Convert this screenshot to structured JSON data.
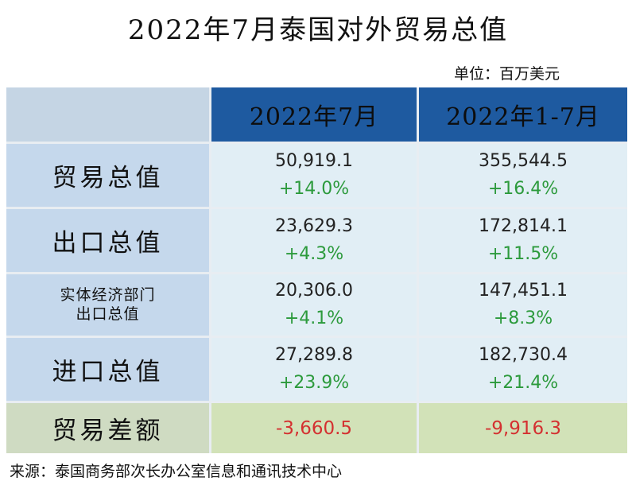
{
  "title": "2022年7月泰国对外贸易总值",
  "unit": "单位：百万美元",
  "columns": [
    "2022年7月",
    "2022年1-7月"
  ],
  "rows": [
    {
      "label": "贸易总值",
      "cells": [
        {
          "value": "50,919.1",
          "change": "+14.0%"
        },
        {
          "value": "355,544.5",
          "change": "+16.4%"
        }
      ]
    },
    {
      "label": "出口总值",
      "cells": [
        {
          "value": "23,629.3",
          "change": "+4.3%"
        },
        {
          "value": "172,814.1",
          "change": "+11.5%"
        }
      ]
    },
    {
      "label_line1": "实体经济部门",
      "label_line2": "出口总值",
      "cells": [
        {
          "value": "20,306.0",
          "change": "+4.1%"
        },
        {
          "value": "147,451.1",
          "change": "+8.3%"
        }
      ]
    },
    {
      "label": "进口总值",
      "cells": [
        {
          "value": "27,289.8",
          "change": "+23.9%"
        },
        {
          "value": "182,730.4",
          "change": "+21.4%"
        }
      ]
    }
  ],
  "balance": {
    "label": "贸易差额",
    "values": [
      "-3,660.5",
      "-9,916.3"
    ]
  },
  "source": "来源：泰国商务部次长办公室信息和通讯技术中心",
  "colors": {
    "header_bg": "#1e5aa0",
    "row_label_bg": "#c5d8ec",
    "data_bg": "#e1eef5",
    "balance_bg": "#d2e2b8",
    "positive": "#2c9a3c",
    "negative": "#d43030"
  }
}
